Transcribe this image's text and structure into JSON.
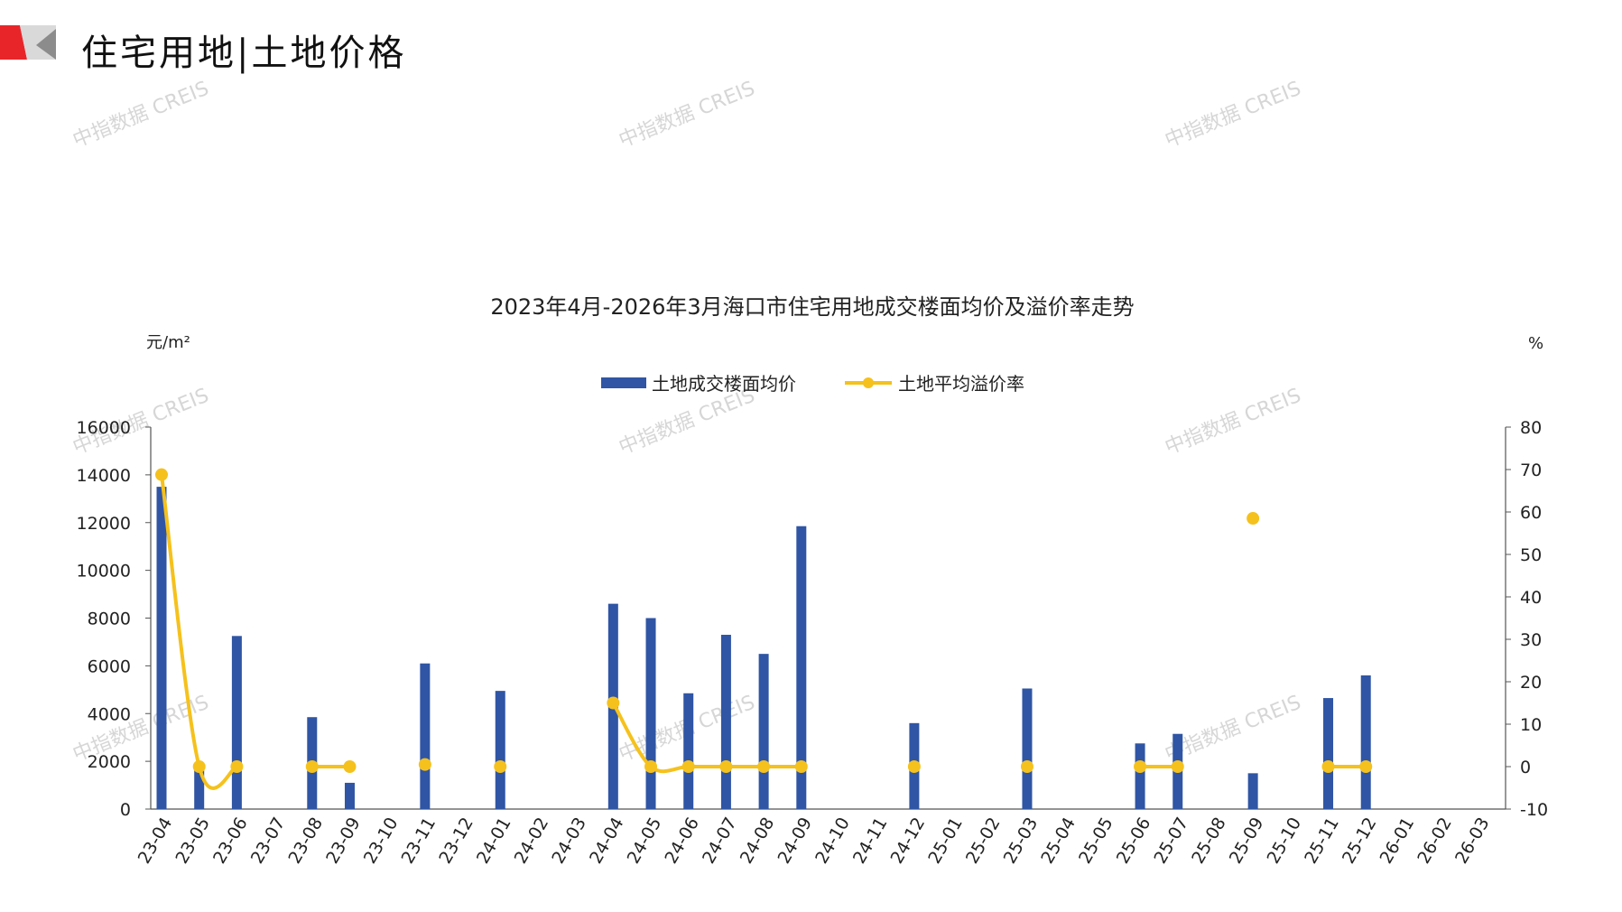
{
  "page": {
    "title": "住宅用地|土地价格",
    "watermark": "中指数据 CREIS"
  },
  "colors": {
    "bar": "#2f55a4",
    "line": "#f5c11c",
    "logo_red": "#e8262a",
    "logo_gray": "#9a9a9a"
  },
  "chart_data": {
    "type": "bar",
    "title": "2023年4月-2026年3月海口市住宅用地成交楼面均价及溢价率走势",
    "y_left_label": "元/m²",
    "y_right_label": "%",
    "y_left_range": [
      0,
      16000
    ],
    "y_left_ticks": [
      0,
      2000,
      4000,
      6000,
      8000,
      10000,
      12000,
      14000,
      16000
    ],
    "y_right_range": [
      -10,
      80
    ],
    "y_right_ticks": [
      -10,
      0,
      10,
      20,
      30,
      40,
      50,
      60,
      70,
      80
    ],
    "legend_position": "top",
    "categories": [
      "23-04",
      "23-05",
      "23-06",
      "23-07",
      "23-08",
      "23-09",
      "23-10",
      "23-11",
      "23-12",
      "24-01",
      "24-02",
      "24-03",
      "24-04",
      "24-05",
      "24-06",
      "24-07",
      "24-08",
      "24-09",
      "24-10",
      "24-11",
      "24-12",
      "25-01",
      "25-02",
      "25-03",
      "25-04",
      "25-05",
      "25-06",
      "25-07",
      "25-08",
      "25-09",
      "25-10",
      "25-11",
      "25-12",
      "26-01",
      "26-02",
      "26-03"
    ],
    "series": [
      {
        "name": "土地成交楼面均价",
        "type": "bar",
        "axis": "left",
        "values": [
          13500,
          1900,
          7250,
          null,
          3850,
          1100,
          null,
          6100,
          null,
          4950,
          null,
          null,
          8600,
          8000,
          4850,
          7300,
          6500,
          11850,
          null,
          null,
          3600,
          null,
          null,
          5050,
          null,
          null,
          2750,
          3150,
          null,
          1500,
          null,
          4650,
          5600,
          null,
          null,
          null
        ]
      },
      {
        "name": "土地平均溢价率",
        "type": "line",
        "axis": "right",
        "values": [
          68.8,
          0,
          0,
          null,
          0,
          0,
          null,
          0.5,
          null,
          0,
          null,
          null,
          15,
          0,
          0,
          0,
          0,
          0,
          null,
          null,
          0,
          null,
          null,
          0,
          null,
          null,
          0,
          0,
          null,
          58.5,
          null,
          0,
          0,
          null,
          null,
          null
        ]
      }
    ]
  }
}
